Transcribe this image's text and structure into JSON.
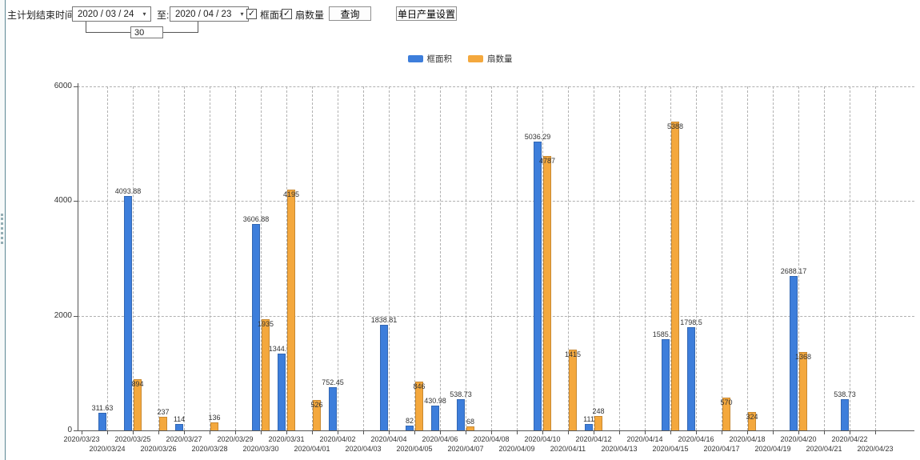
{
  "toolbar": {
    "label": "主计划结束时间:",
    "date_from": "2020 / 03 / 24",
    "to_label": "至:",
    "date_to": "2020 / 04 / 23",
    "interval_value": "30",
    "checkboxes": [
      {
        "label": "框面积",
        "checked": true
      },
      {
        "label": "扇数量",
        "checked": true
      }
    ],
    "query_button_label": "查询",
    "daily_output_button_label": "单日产量设置"
  },
  "icons": {
    "dropdown_arrow": "▾",
    "checkbox_check": "✓"
  },
  "legend": {
    "items": [
      {
        "label": "框面积",
        "color": "#3d7edb"
      },
      {
        "label": "扇数量",
        "color": "#f4a83d"
      }
    ]
  },
  "chart_data": {
    "type": "bar",
    "title": "",
    "xlabel": "",
    "ylabel": "",
    "ylim": [
      0,
      6000
    ],
    "yticks": [
      0,
      2000,
      4000,
      6000
    ],
    "grid": true,
    "legend_position": "top",
    "categories": [
      "2020/03/23",
      "2020/03/24",
      "2020/03/25",
      "2020/03/26",
      "2020/03/27",
      "2020/03/28",
      "2020/03/29",
      "2020/03/30",
      "2020/03/31",
      "2020/04/01",
      "2020/04/02",
      "2020/04/03",
      "2020/04/04",
      "2020/04/05",
      "2020/04/06",
      "2020/04/07",
      "2020/04/08",
      "2020/04/09",
      "2020/04/10",
      "2020/04/11",
      "2020/04/12",
      "2020/04/13",
      "2020/04/14",
      "2020/04/15",
      "2020/04/16",
      "2020/04/17",
      "2020/04/18",
      "2020/04/19",
      "2020/04/20",
      "2020/04/21",
      "2020/04/22",
      "2020/04/23"
    ],
    "series": [
      {
        "name": "框面积",
        "key": "frame-area",
        "color": "#3d7edb",
        "values": [
          null,
          311.63,
          4093.88,
          null,
          114,
          null,
          null,
          3606.88,
          1344.95,
          null,
          752.45,
          null,
          1838.81,
          82,
          430.98,
          538.73,
          null,
          null,
          5036.29,
          null,
          111,
          null,
          null,
          1585.96,
          1798.5,
          null,
          null,
          null,
          2688.17,
          null,
          538.73,
          null
        ]
      },
      {
        "name": "扇数量",
        "key": "fan-count",
        "color": "#f4a83d",
        "values": [
          null,
          null,
          894,
          237,
          null,
          136,
          null,
          1935,
          4195,
          526,
          null,
          null,
          null,
          846,
          null,
          68,
          null,
          null,
          4787,
          1415,
          248,
          null,
          null,
          5388,
          null,
          570,
          324,
          null,
          1368,
          null,
          null,
          null
        ]
      }
    ]
  }
}
